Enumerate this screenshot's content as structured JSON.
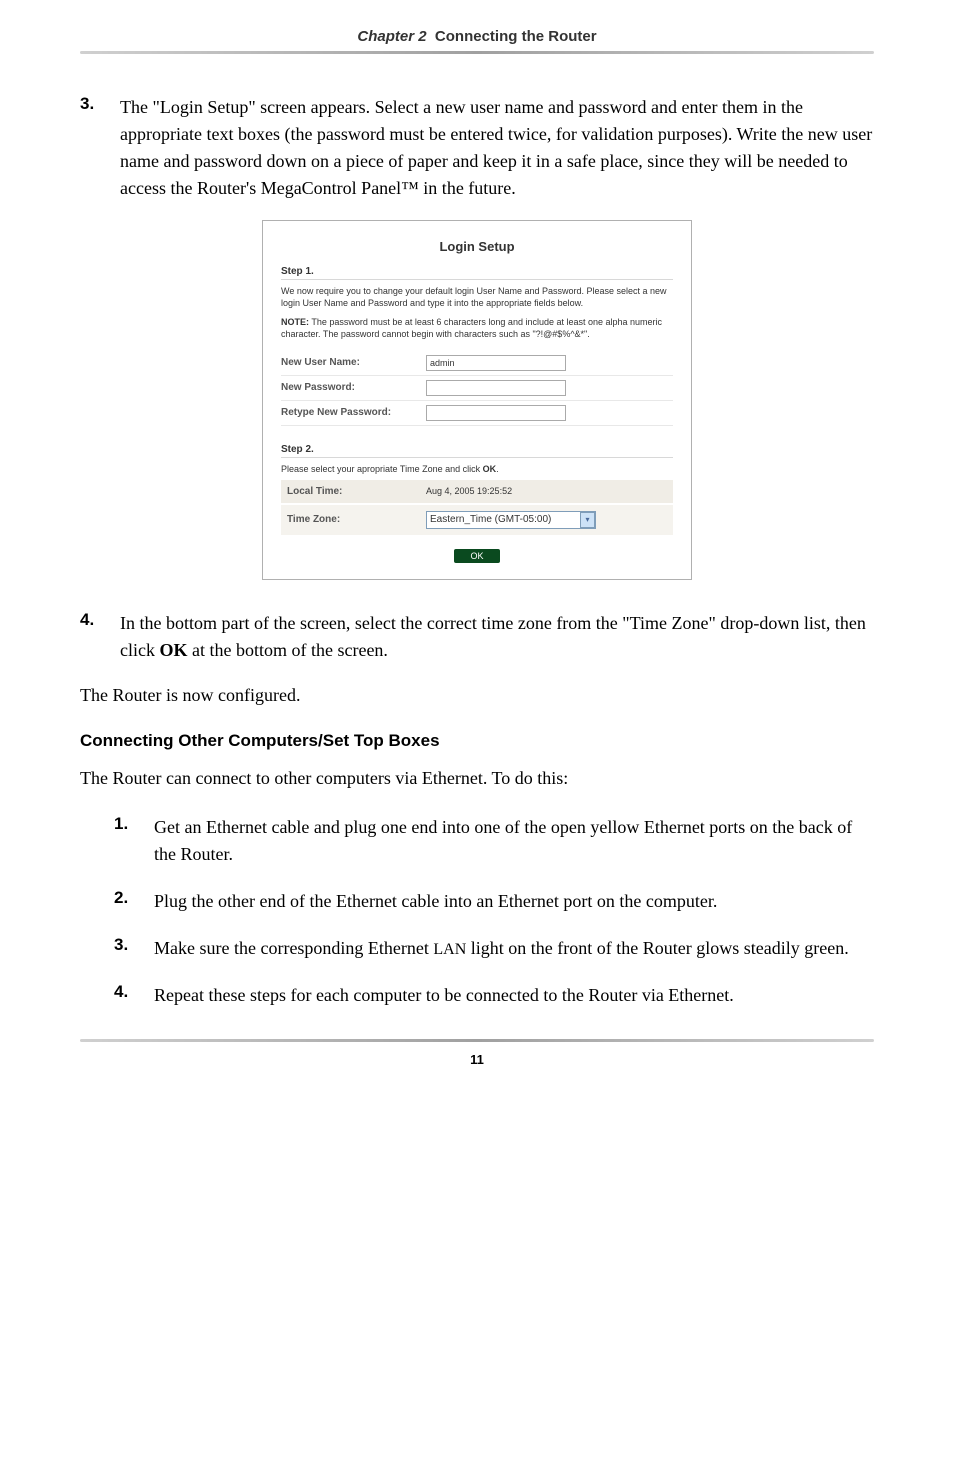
{
  "header": {
    "chapter": "Chapter 2",
    "title": "Connecting the Router"
  },
  "items": {
    "three": {
      "num": "3.",
      "text": "The \"Login Setup\" screen appears. Select a new user name and password and enter them in the appropriate text boxes (the password must be entered twice, for validation purposes). Write the new user name and password down on a piece of paper and keep it in a safe place, since they will be needed to access the Router's MegaControl Panel™ in the future."
    },
    "four": {
      "num": "4.",
      "text_a": "In the bottom part of the screen, select the correct time zone from the \"Time Zone\" drop-down list, then click ",
      "ok": "OK",
      "text_b": " at the bottom of the screen."
    }
  },
  "login_setup": {
    "title": "Login Setup",
    "step1": "Step 1.",
    "para1": "We now require you to change your default login User Name and Password. Please select a new login User Name and Password and type it into the appropriate fields below.",
    "note_label": "NOTE:",
    "note_text": " The password must be at least 6 characters long and include at least one alpha numeric character. The password cannot begin with characters such as \"?!@#$%^&*\".",
    "user_label": "New User Name:",
    "user_value": "admin",
    "pass_label": "New Password:",
    "retype_label": "Retype New Password:",
    "step2": "Step 2.",
    "step2_para": "Please select your apropriate Time Zone and click ",
    "step2_ok": "OK",
    "local_time_label": "Local Time:",
    "local_time_value": "Aug 4, 2005 19:25:52",
    "tz_label": "Time Zone:",
    "tz_value": "Eastern_Time (GMT-05:00)",
    "ok_btn": "OK"
  },
  "configured": "The Router is now configured.",
  "subhead": "Connecting Other Computers/Set Top Boxes",
  "sub_intro": "The Router can connect to other computers via Ethernet. To do this:",
  "sublist": {
    "one": {
      "num": "1.",
      "text": "Get an Ethernet cable and plug one end into one of the open yellow Ethernet ports on the back of the Router."
    },
    "two": {
      "num": "2.",
      "text": "Plug the other end of the Ethernet cable into an Ethernet port on the computer."
    },
    "three": {
      "num": "3.",
      "text_a": "Make sure the corresponding Ethernet ",
      "lan": "LAN",
      "text_b": " light on the front of the Router glows steadily green."
    },
    "four": {
      "num": "4.",
      "text": "Repeat these steps for each computer to be connected to the Router via Ethernet."
    }
  },
  "page_number": "11"
}
